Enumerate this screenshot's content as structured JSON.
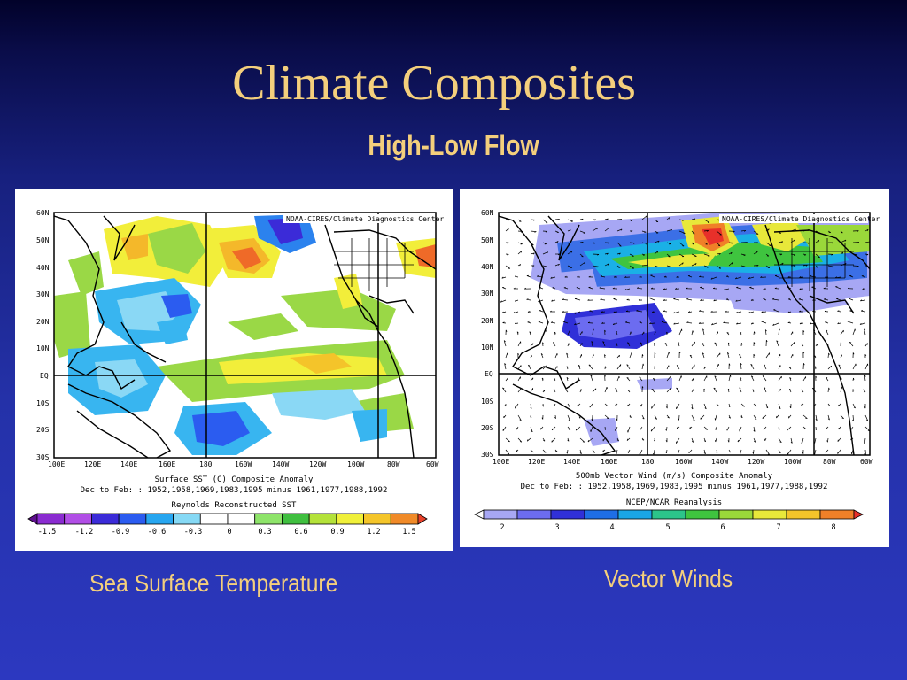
{
  "slide": {
    "title": "Climate Composites",
    "subtitle": "High-Low Flow",
    "caption_left": "Sea Surface Temperature",
    "caption_right": "Vector Winds"
  },
  "map_common": {
    "credit": "NOAA-CIRES/Climate Diagnostics Center",
    "lat_labels": [
      "60N",
      "50N",
      "40N",
      "30N",
      "20N",
      "10N",
      "EQ",
      "10S",
      "20S",
      "30S"
    ],
    "lon_labels": [
      "100E",
      "120E",
      "140E",
      "160E",
      "180",
      "160W",
      "140W",
      "120W",
      "100W",
      "80W",
      "60W"
    ],
    "period": "Dec to Feb: : 1952,1958,1969,1983,1995 minus 1961,1977,1988,1992"
  },
  "sst_map": {
    "caption": "Surface SST (C) Composite Anomaly",
    "dataset": "Reynolds Reconstructed SST",
    "colorbar_labels": [
      "-1.5",
      "-1.2",
      "-0.9",
      "-0.6",
      "-0.3",
      "0",
      "0.3",
      "0.6",
      "0.9",
      "1.2",
      "1.5"
    ],
    "colorbar_colors": [
      "#5e0f8e",
      "#8a2bd0",
      "#b14ee6",
      "#3b2bd8",
      "#2b5cf0",
      "#27a6f0",
      "#86d9f5",
      "#ffffff",
      "#ffffff",
      "#8ee46a",
      "#3fbf3f",
      "#b4e23a",
      "#f0f03a",
      "#f4c52a",
      "#f08a28",
      "#e8402a"
    ]
  },
  "wind_map": {
    "caption": "500mb Vector Wind (m/s) Composite Anomaly",
    "dataset": "NCEP/NCAR Reanalysis",
    "colorbar_labels": [
      "2",
      "3",
      "4",
      "5",
      "6",
      "7",
      "8"
    ],
    "colorbar_colors": [
      "#ffffff",
      "#a7a7f4",
      "#6c6cf0",
      "#3030d8",
      "#1e6ee6",
      "#1aa6e6",
      "#2cc48a",
      "#3fc43f",
      "#9ad83a",
      "#e8e83a",
      "#f4c42a",
      "#f08028",
      "#e8302a"
    ]
  }
}
